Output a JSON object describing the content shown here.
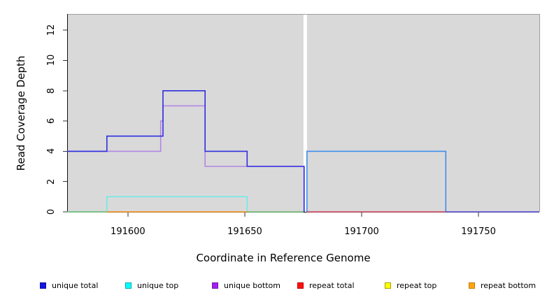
{
  "chart_data": {
    "type": "line",
    "variant": "step-coverage-plot",
    "title": "",
    "xlabel": "Coordinate in Reference Genome",
    "ylabel": "Read Coverage Depth",
    "xlim": [
      191574,
      191776
    ],
    "ylim": [
      0,
      13.07
    ],
    "x_ticks": [
      191600,
      191650,
      191700,
      191750
    ],
    "y_ticks": [
      0,
      2,
      4,
      6,
      8,
      10,
      12
    ],
    "grid": false,
    "legend_position": "bottom",
    "panel_bg": "#d9d9d9",
    "panel_border": "#9e9e9e",
    "axis_color": "#111111",
    "tick_color": "#333333",
    "gap_band": {
      "x1": 191675.1,
      "x2": 191676.6,
      "color": "#ffffff"
    },
    "series": [
      {
        "name": "unique-top",
        "legend_label": "unique top",
        "color": "#72e9e9",
        "points": [
          [
            191574,
            0
          ],
          [
            191591,
            0
          ],
          [
            191591,
            1
          ],
          [
            191651,
            1
          ],
          [
            191651,
            0
          ]
        ]
      },
      {
        "name": "zero-baseline-overlap-left",
        "legend_label": "",
        "color": "#7dc87d",
        "points": [
          [
            191574,
            0
          ],
          [
            191591,
            0
          ]
        ]
      },
      {
        "name": "zero-baseline-overlap-mid",
        "legend_label": "",
        "color": "#7dc87d",
        "points": [
          [
            191651,
            0
          ],
          [
            191675.1,
            0
          ]
        ]
      },
      {
        "name": "repeat-bottom",
        "legend_label": "repeat bottom",
        "color": "#ff9e1f",
        "points": [
          [
            191591,
            0
          ],
          [
            191651,
            0
          ]
        ]
      },
      {
        "name": "unique-bottom",
        "legend_label": "unique bottom",
        "color": "#b185e6",
        "points": [
          [
            191574,
            4
          ],
          [
            191614,
            4
          ],
          [
            191614,
            6
          ],
          [
            191615,
            6
          ],
          [
            191615,
            7
          ],
          [
            191633,
            7
          ],
          [
            191633,
            3
          ],
          [
            191675.3,
            3
          ],
          [
            191675.3,
            0
          ]
        ]
      },
      {
        "name": "unique-total",
        "legend_label": "unique total",
        "color": "#2f2fe0",
        "points": [
          [
            191574,
            4
          ],
          [
            191591,
            4
          ],
          [
            191591,
            5
          ],
          [
            191615,
            5
          ],
          [
            191615,
            8
          ],
          [
            191633,
            8
          ],
          [
            191633,
            4
          ],
          [
            191651,
            4
          ],
          [
            191651,
            3
          ],
          [
            191675.4,
            3
          ],
          [
            191675.4,
            0
          ]
        ]
      },
      {
        "name": "repeat-total",
        "legend_label": "repeat total",
        "color": "#dd5068",
        "points": [
          [
            191676.4,
            0
          ],
          [
            191736,
            0
          ]
        ]
      },
      {
        "name": "unique-total-right",
        "legend_label": "",
        "color": "#3d8dec",
        "points": [
          [
            191676.6,
            0
          ],
          [
            191676.6,
            4
          ],
          [
            191736,
            4
          ],
          [
            191736,
            0
          ]
        ]
      },
      {
        "name": "zero-baseline-overlap-right",
        "legend_label": "",
        "color": "#6156e4",
        "points": [
          [
            191736,
            0
          ],
          [
            191776,
            0
          ]
        ]
      }
    ]
  },
  "legend": {
    "items": [
      {
        "label": "unique total",
        "fill": "#1414e0",
        "border": "#0d0da8"
      },
      {
        "label": "unique top",
        "fill": "#00ffff",
        "border": "#00a8ac"
      },
      {
        "label": "unique bottom",
        "fill": "#a020f0",
        "border": "#7714b4"
      },
      {
        "label": "repeat total",
        "fill": "#ff1010",
        "border": "#bc0000"
      },
      {
        "label": "repeat top",
        "fill": "#ffff00",
        "border": "#a0a000"
      },
      {
        "label": "repeat bottom",
        "fill": "#ffa510",
        "border": "#c47a00"
      }
    ]
  }
}
